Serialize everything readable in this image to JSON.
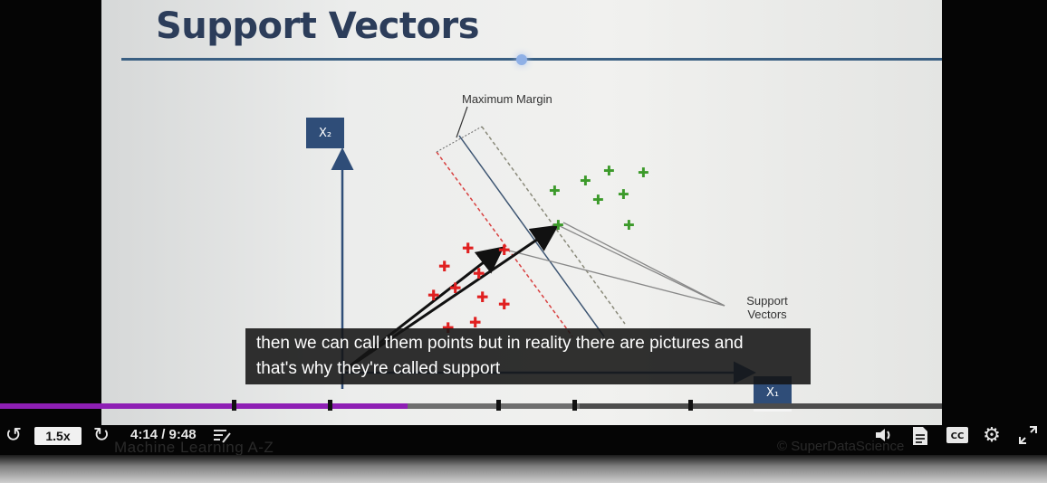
{
  "slide": {
    "title": "Support Vectors",
    "x2_label": "X₂",
    "x1_label": "X₁",
    "max_margin_label": "Maximum Margin",
    "support_vectors_label": [
      "Support",
      "Vectors"
    ],
    "colors": {
      "red_points": "#e02020",
      "green_points": "#3c9a2a",
      "axis": "#2f4d78",
      "hyperplane": "#3d5572"
    }
  },
  "caption": {
    "line1": "then we can call them points but in reality there are pictures and",
    "line2": "that's why they're called support"
  },
  "player": {
    "speed": "1.5x",
    "time": "4:14 / 9:48",
    "progress_fraction": 0.433,
    "icons": [
      "rewind-icon",
      "forward-icon",
      "notes-icon",
      "volume-icon",
      "transcript-icon",
      "cc-icon",
      "settings-icon",
      "fullscreen-icon"
    ],
    "cc_label": "CC",
    "accent_color": "#8e1fb4"
  },
  "background": {
    "course_title": "Machine Learning A-Z",
    "brand": "© SuperDataScience"
  }
}
